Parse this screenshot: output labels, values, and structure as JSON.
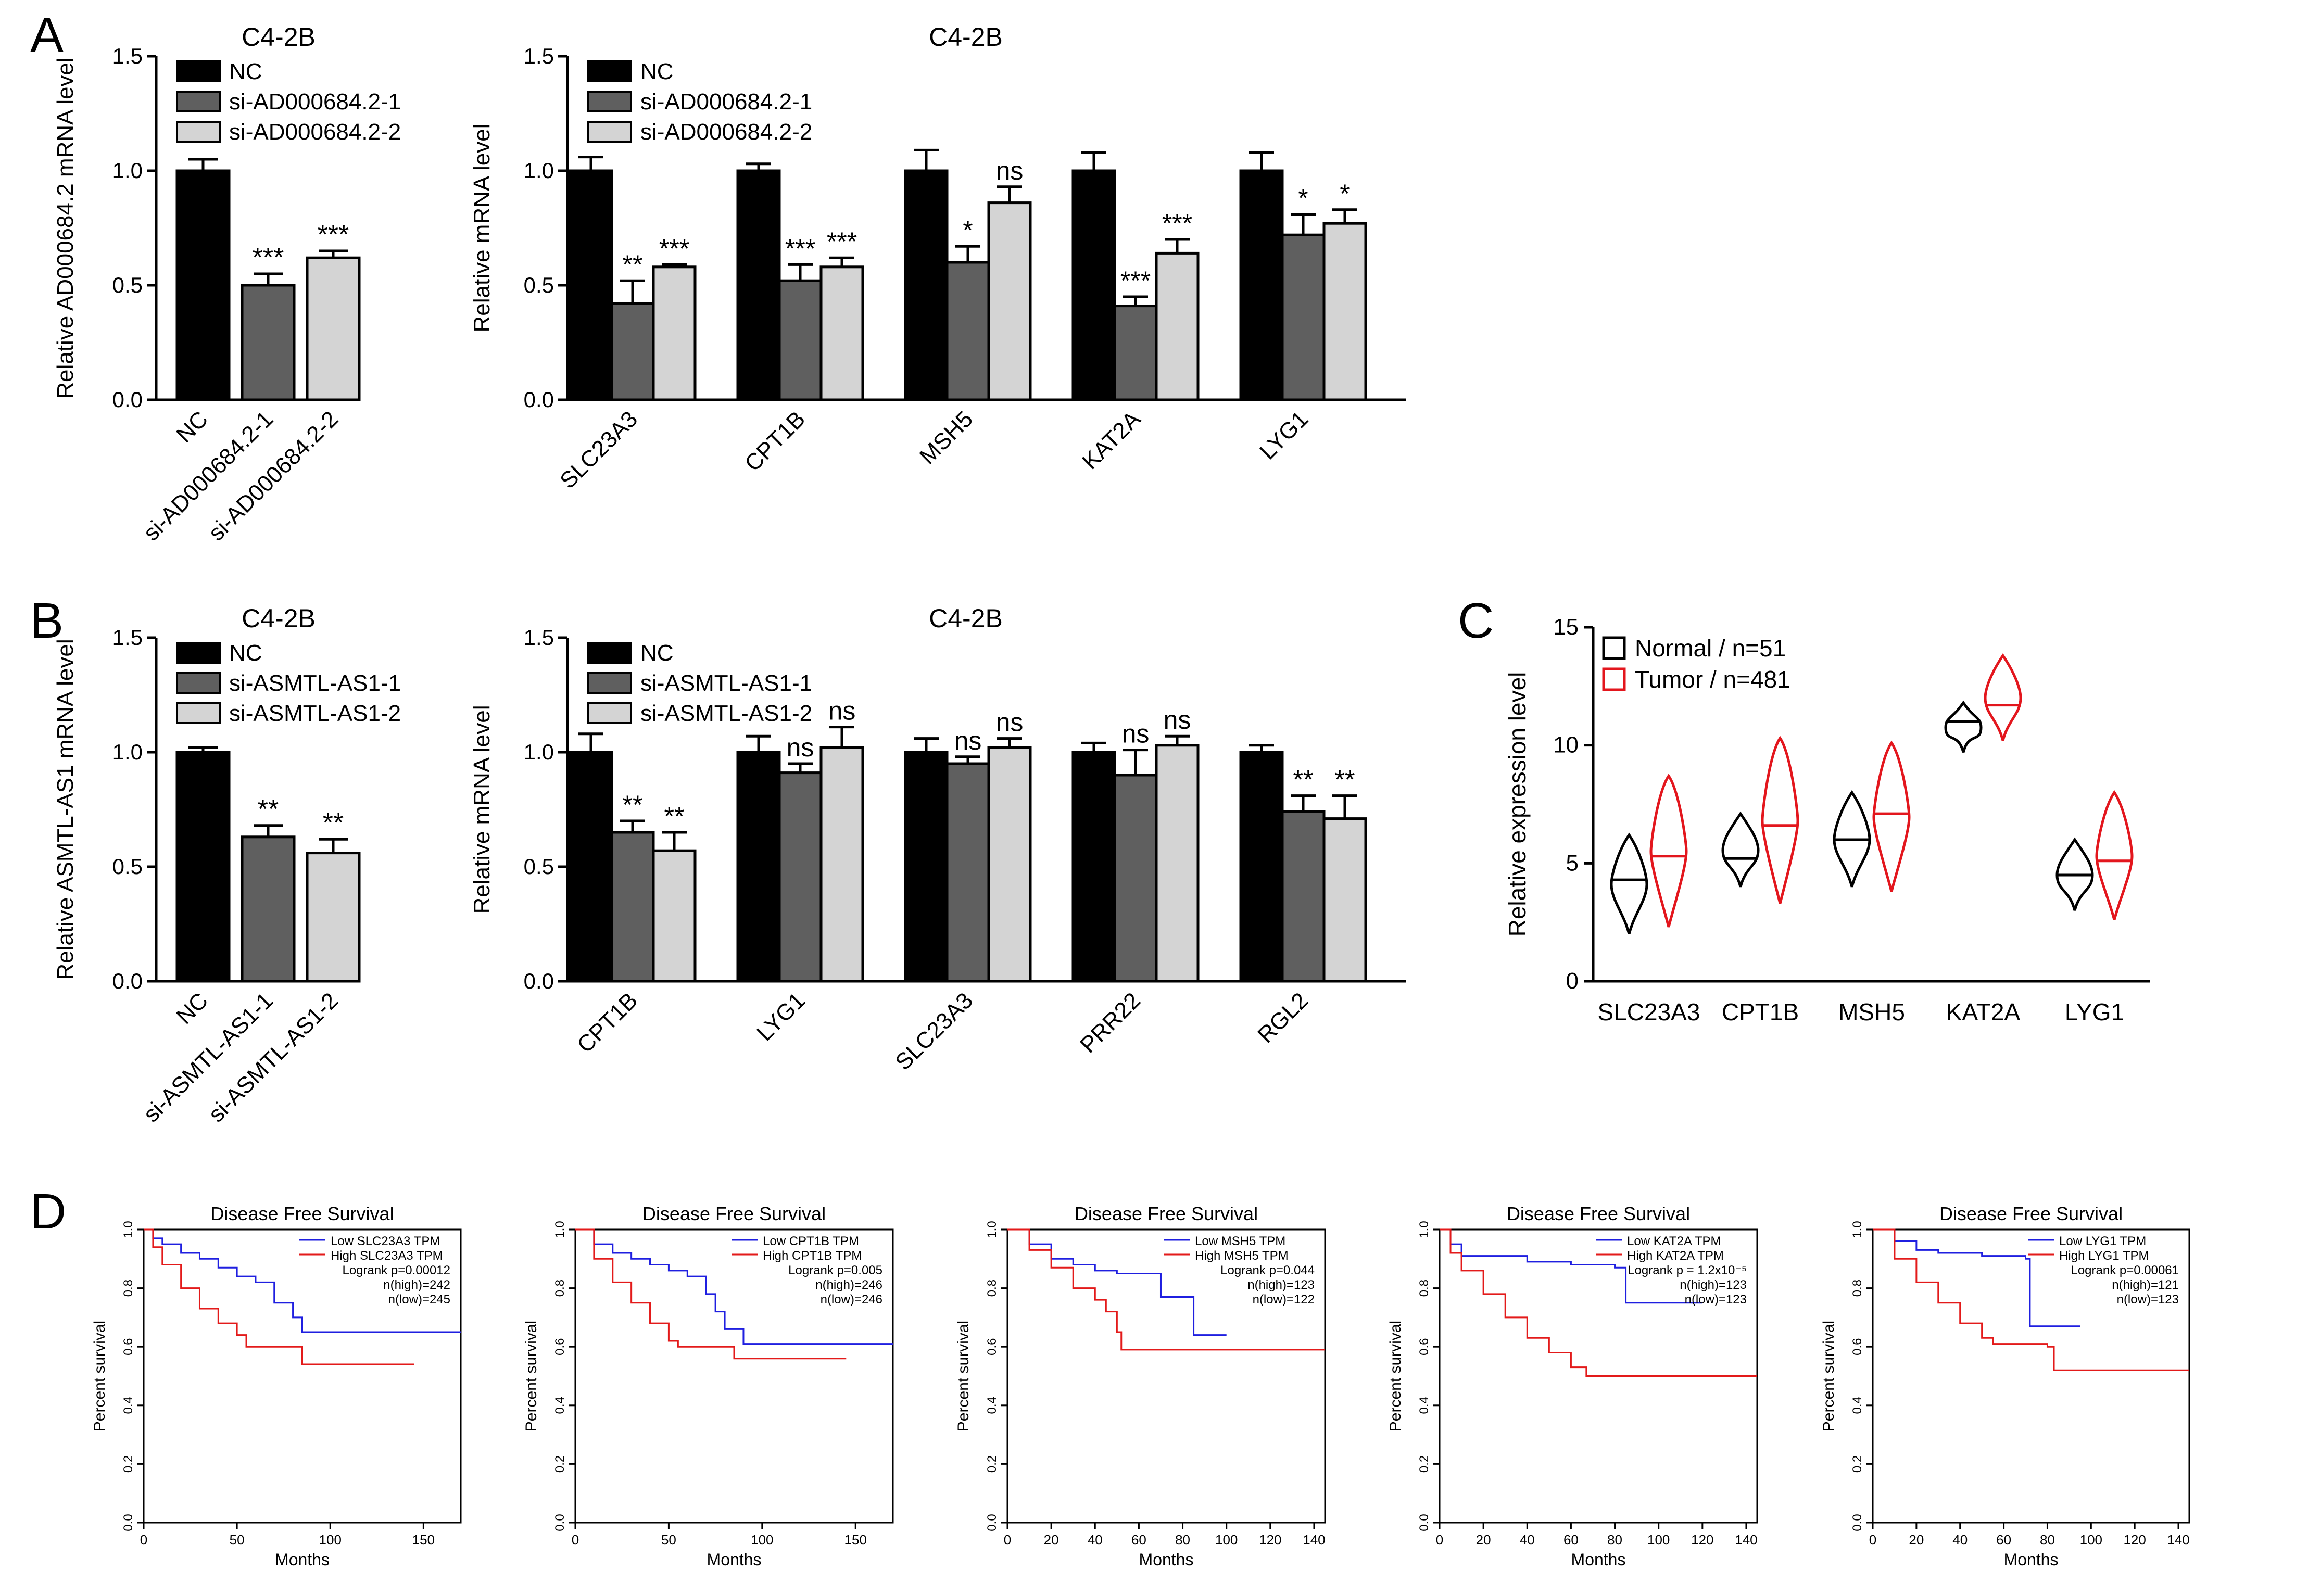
{
  "panel_letters": {
    "A": "A",
    "B": "B",
    "C": "C",
    "D": "D"
  },
  "colors": {
    "nc": "#000000",
    "si1": "#5f5f5f",
    "si2": "#d4d4d4",
    "normal": "#000000",
    "tumor": "#e3161d",
    "low": "#1f1fe0",
    "high": "#e31a1a"
  },
  "chart_data": [
    {
      "id": "A1",
      "type": "bar",
      "title": "C4-2B",
      "ylabel": "Relative AD000684.2 mRNA level",
      "ylim": [
        0,
        1.5
      ],
      "yticks": [
        "0.0",
        "0.5",
        "1.0",
        "1.5"
      ],
      "legend": [
        "NC",
        "si-AD000684.2-1",
        "si-AD000684.2-2"
      ],
      "categories": [
        "NC",
        "si-AD000684.2-1",
        "si-AD000684.2-2"
      ],
      "values": [
        1.0,
        0.5,
        0.62
      ],
      "errors": [
        0.05,
        0.05,
        0.03
      ],
      "sig": [
        "",
        "***",
        "***"
      ]
    },
    {
      "id": "A2",
      "type": "bar",
      "title": "C4-2B",
      "ylabel": "Relative  mRNA level",
      "ylim": [
        0,
        1.5
      ],
      "yticks": [
        "0.0",
        "0.5",
        "1.0",
        "1.5"
      ],
      "legend": [
        "NC",
        "si-AD000684.2-1",
        "si-AD000684.2-2"
      ],
      "categories": [
        "SLC23A3",
        "CPT1B",
        "MSH5",
        "KAT2A",
        "LYG1"
      ],
      "series": [
        {
          "name": "NC",
          "values": [
            1.0,
            1.0,
            1.0,
            1.0,
            1.0
          ],
          "errors": [
            0.06,
            0.03,
            0.09,
            0.08,
            0.08
          ],
          "sig": [
            "",
            "",
            "",
            "",
            ""
          ]
        },
        {
          "name": "si-AD000684.2-1",
          "values": [
            0.42,
            0.52,
            0.6,
            0.41,
            0.72
          ],
          "errors": [
            0.1,
            0.07,
            0.07,
            0.04,
            0.09
          ],
          "sig": [
            "**",
            "***",
            "*",
            "***",
            "*"
          ]
        },
        {
          "name": "si-AD000684.2-2",
          "values": [
            0.58,
            0.58,
            0.86,
            0.64,
            0.77
          ],
          "errors": [
            0.01,
            0.04,
            0.07,
            0.06,
            0.06
          ],
          "sig": [
            "***",
            "***",
            "ns",
            "***",
            "*"
          ]
        }
      ]
    },
    {
      "id": "B1",
      "type": "bar",
      "title": "C4-2B",
      "ylabel": "Relative ASMTL-AS1 mRNA level",
      "ylim": [
        0,
        1.5
      ],
      "yticks": [
        "0.0",
        "0.5",
        "1.0",
        "1.5"
      ],
      "legend": [
        "NC",
        "si-ASMTL-AS1-1",
        "si-ASMTL-AS1-2"
      ],
      "categories": [
        "NC",
        "si-ASMTL-AS1-1",
        "si-ASMTL-AS1-2"
      ],
      "values": [
        1.0,
        0.63,
        0.56
      ],
      "errors": [
        0.02,
        0.05,
        0.06
      ],
      "sig": [
        "",
        "**",
        "**"
      ]
    },
    {
      "id": "B2",
      "type": "bar",
      "title": "C4-2B",
      "ylabel": "Relative  mRNA level",
      "ylim": [
        0,
        1.5
      ],
      "yticks": [
        "0.0",
        "0.5",
        "1.0",
        "1.5"
      ],
      "legend": [
        "NC",
        "si-ASMTL-AS1-1",
        "si-ASMTL-AS1-2"
      ],
      "categories": [
        "CPT1B",
        "LYG1",
        "SLC23A3",
        "PRR22",
        "RGL2"
      ],
      "series": [
        {
          "name": "NC",
          "values": [
            1.0,
            1.0,
            1.0,
            1.0,
            1.0
          ],
          "errors": [
            0.08,
            0.07,
            0.06,
            0.04,
            0.03
          ],
          "sig": [
            "",
            "",
            "",
            "",
            ""
          ]
        },
        {
          "name": "si-ASMTL-AS1-1",
          "values": [
            0.65,
            0.91,
            0.95,
            0.9,
            0.74
          ],
          "errors": [
            0.05,
            0.04,
            0.03,
            0.11,
            0.07
          ],
          "sig": [
            "**",
            "ns",
            "ns",
            "ns",
            "**"
          ]
        },
        {
          "name": "si-ASMTL-AS1-2",
          "values": [
            0.57,
            1.02,
            1.02,
            1.03,
            0.71
          ],
          "errors": [
            0.08,
            0.09,
            0.04,
            0.04,
            0.1
          ],
          "sig": [
            "**",
            "ns",
            "ns",
            "ns",
            "**"
          ]
        }
      ]
    },
    {
      "id": "C",
      "type": "violin",
      "ylabel": "Relative  expression level",
      "ylim": [
        0,
        15
      ],
      "yticks": [
        "0",
        "5",
        "10",
        "15"
      ],
      "categories": [
        "SLC23A3",
        "CPT1B",
        "MSH5",
        "KAT2A",
        "LYG1"
      ],
      "legend": [
        "Normal / n=51",
        "Tumor / n=481"
      ],
      "series": [
        {
          "name": "Normal",
          "median": [
            4.3,
            5.2,
            6.0,
            11.0,
            4.5
          ],
          "min": [
            2.0,
            4.0,
            4.0,
            9.7,
            3.0
          ],
          "max": [
            6.2,
            7.1,
            8.0,
            11.8,
            6.0
          ]
        },
        {
          "name": "Tumor",
          "median": [
            5.3,
            6.6,
            7.1,
            11.7,
            5.1
          ],
          "min": [
            2.3,
            3.3,
            3.8,
            10.2,
            2.6
          ],
          "max": [
            8.7,
            10.3,
            10.1,
            13.8,
            8.0
          ]
        }
      ]
    },
    {
      "id": "D1",
      "type": "line",
      "title": "Disease Free Survival",
      "xlabel": "Months",
      "ylabel": "Percent survival",
      "xlim": [
        0,
        170
      ],
      "xticks": [
        "0",
        "50",
        "100",
        "150"
      ],
      "yticks": [
        "0.0",
        "0.2",
        "0.4",
        "0.6",
        "0.8",
        "1.0"
      ],
      "legend": [
        "Low SLC23A3 TPM",
        "High SLC23A3 TPM"
      ],
      "stats": [
        "Logrank p=0.00012",
        "n(high)=242",
        "n(low)=245"
      ],
      "series": [
        {
          "name": "Low SLC23A3 TPM",
          "x": [
            0,
            5,
            10,
            20,
            30,
            40,
            50,
            60,
            70,
            80,
            85,
            170
          ],
          "y": [
            1.0,
            0.97,
            0.95,
            0.92,
            0.9,
            0.87,
            0.84,
            0.82,
            0.75,
            0.7,
            0.65,
            0.65
          ]
        },
        {
          "name": "High SLC23A3 TPM",
          "x": [
            0,
            5,
            10,
            20,
            30,
            40,
            50,
            55,
            60,
            80,
            85,
            145
          ],
          "y": [
            1.0,
            0.94,
            0.88,
            0.8,
            0.73,
            0.68,
            0.64,
            0.6,
            0.6,
            0.6,
            0.54,
            0.54
          ]
        }
      ]
    },
    {
      "id": "D2",
      "type": "line",
      "title": "Disease Free Survival",
      "xlabel": "Months",
      "ylabel": "Percent survival",
      "xlim": [
        0,
        170
      ],
      "xticks": [
        "0",
        "50",
        "100",
        "150"
      ],
      "yticks": [
        "0.0",
        "0.2",
        "0.4",
        "0.6",
        "0.8",
        "1.0"
      ],
      "legend": [
        "Low CPT1B TPM",
        "High CPT1B TPM"
      ],
      "stats": [
        "Logrank p=0.005",
        "n(high)=246",
        "n(low)=246"
      ],
      "series": [
        {
          "name": "Low CPT1B TPM",
          "x": [
            0,
            10,
            20,
            30,
            40,
            50,
            60,
            70,
            75,
            80,
            90,
            170
          ],
          "y": [
            1.0,
            0.95,
            0.92,
            0.9,
            0.88,
            0.86,
            0.84,
            0.78,
            0.72,
            0.66,
            0.61,
            0.61
          ]
        },
        {
          "name": "High CPT1B TPM",
          "x": [
            0,
            10,
            20,
            30,
            40,
            50,
            55,
            80,
            85,
            145
          ],
          "y": [
            1.0,
            0.9,
            0.82,
            0.75,
            0.68,
            0.62,
            0.6,
            0.6,
            0.56,
            0.56
          ]
        }
      ]
    },
    {
      "id": "D3",
      "type": "line",
      "title": "Disease Free Survival",
      "xlabel": "Months",
      "ylabel": "Percent survival",
      "xlim": [
        0,
        145
      ],
      "xticks": [
        "0",
        "20",
        "40",
        "60",
        "80",
        "100",
        "120",
        "140"
      ],
      "yticks": [
        "0.0",
        "0.2",
        "0.4",
        "0.6",
        "0.8",
        "1.0"
      ],
      "legend": [
        "Low MSH5 TPM",
        "High MSH5 TPM"
      ],
      "stats": [
        "Logrank p=0.044",
        "n(high)=123",
        "n(low)=122"
      ],
      "series": [
        {
          "name": "Low MSH5 TPM",
          "x": [
            0,
            10,
            20,
            30,
            40,
            50,
            60,
            70,
            80,
            85,
            100
          ],
          "y": [
            1.0,
            0.95,
            0.9,
            0.88,
            0.86,
            0.85,
            0.85,
            0.77,
            0.77,
            0.64,
            0.64
          ]
        },
        {
          "name": "High MSH5 TPM",
          "x": [
            0,
            10,
            20,
            30,
            40,
            45,
            50,
            52,
            60,
            145
          ],
          "y": [
            1.0,
            0.93,
            0.87,
            0.8,
            0.76,
            0.72,
            0.65,
            0.59,
            0.59,
            0.59
          ]
        }
      ]
    },
    {
      "id": "D4",
      "type": "line",
      "title": "Disease Free Survival",
      "xlabel": "Months",
      "ylabel": "Percent survival",
      "xlim": [
        0,
        145
      ],
      "xticks": [
        "0",
        "20",
        "40",
        "60",
        "80",
        "100",
        "120",
        "140"
      ],
      "yticks": [
        "0.0",
        "0.2",
        "0.4",
        "0.6",
        "0.8",
        "1.0"
      ],
      "legend": [
        "Low KAT2A TPM",
        "High KAT2A TPM"
      ],
      "stats": [
        "Logrank p = 1.2x10⁻⁵",
        "n(high)=123",
        "n(low)=123"
      ],
      "series": [
        {
          "name": "Low KAT2A TPM",
          "x": [
            0,
            5,
            10,
            20,
            40,
            60,
            80,
            83,
            85,
            120
          ],
          "y": [
            1.0,
            0.95,
            0.91,
            0.91,
            0.89,
            0.88,
            0.87,
            0.87,
            0.75,
            0.75
          ]
        },
        {
          "name": "High KAT2A TPM",
          "x": [
            0,
            5,
            10,
            20,
            30,
            40,
            50,
            60,
            67,
            145
          ],
          "y": [
            1.0,
            0.92,
            0.86,
            0.78,
            0.7,
            0.63,
            0.58,
            0.53,
            0.5,
            0.5
          ]
        }
      ]
    },
    {
      "id": "D5",
      "type": "line",
      "title": "Disease Free Survival",
      "xlabel": "Months",
      "ylabel": "Percent survival",
      "xlim": [
        0,
        145
      ],
      "xticks": [
        "0",
        "20",
        "40",
        "60",
        "80",
        "100",
        "120",
        "140"
      ],
      "yticks": [
        "0.0",
        "0.2",
        "0.4",
        "0.6",
        "0.8",
        "1.0"
      ],
      "legend": [
        "Low LYG1 TPM",
        "High LYG1 TPM"
      ],
      "stats": [
        "Logrank p=0.00061",
        "n(high)=121",
        "n(low)=123"
      ],
      "series": [
        {
          "name": "Low LYG1 TPM",
          "x": [
            0,
            10,
            20,
            30,
            50,
            60,
            70,
            72,
            75,
            95
          ],
          "y": [
            1.0,
            0.96,
            0.93,
            0.92,
            0.91,
            0.91,
            0.9,
            0.67,
            0.67,
            0.67
          ]
        },
        {
          "name": "High LYG1 TPM",
          "x": [
            0,
            10,
            20,
            30,
            40,
            50,
            55,
            80,
            83,
            145
          ],
          "y": [
            1.0,
            0.9,
            0.82,
            0.75,
            0.68,
            0.63,
            0.61,
            0.6,
            0.52,
            0.52
          ]
        }
      ]
    }
  ]
}
